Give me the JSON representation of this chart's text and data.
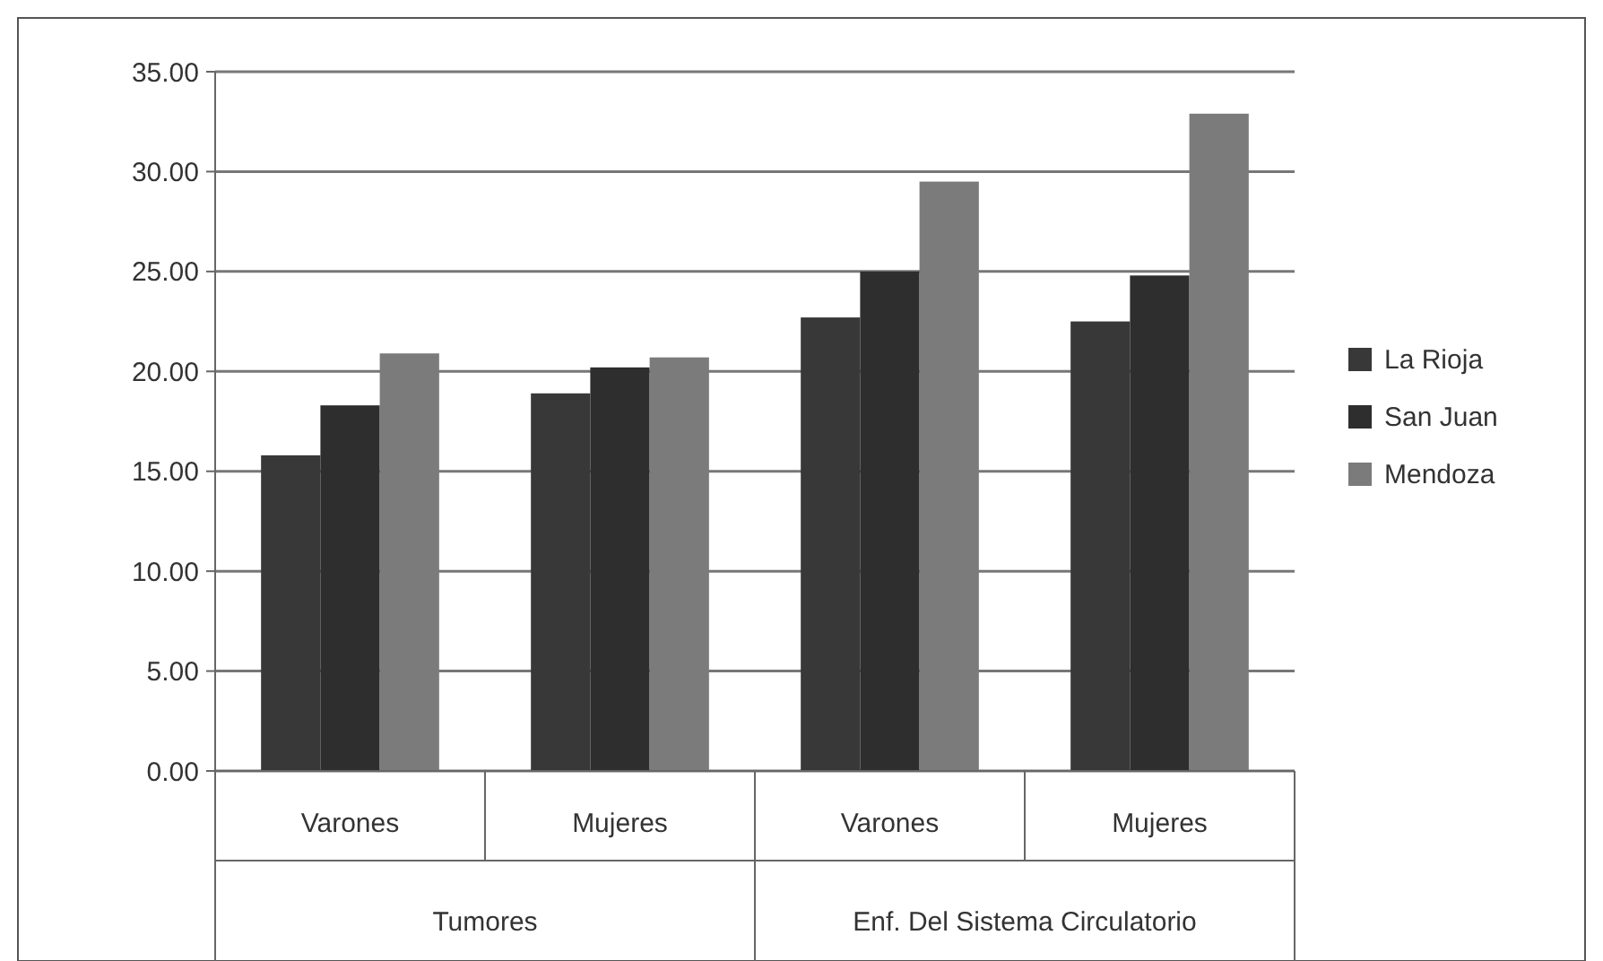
{
  "chart_data": {
    "type": "bar",
    "categories": [
      "Varones",
      "Mujeres",
      "Varones",
      "Mujeres"
    ],
    "annotations": [
      "Tumores",
      "Enf. Del Sistema Circulatorio"
    ],
    "series": [
      {
        "name": "La Rioja",
        "color": "#383838",
        "values": [
          15.8,
          18.9,
          22.7,
          22.5
        ]
      },
      {
        "name": "San Juan",
        "color": "#2e2e2e",
        "values": [
          18.3,
          20.2,
          25.0,
          24.8
        ]
      },
      {
        "name": "Mendoza",
        "color": "#7b7b7b",
        "values": [
          20.9,
          20.7,
          29.5,
          32.9
        ]
      }
    ],
    "ylim": [
      0,
      35
    ],
    "yticks": [
      {
        "value": 0,
        "label": "0.00"
      },
      {
        "value": 5,
        "label": "5.00"
      },
      {
        "value": 10,
        "label": "10.00"
      },
      {
        "value": 15,
        "label": "15.00"
      },
      {
        "value": 20,
        "label": "20.00"
      },
      {
        "value": 25,
        "label": "25.00"
      },
      {
        "value": 30,
        "label": "30.00"
      },
      {
        "value": 35,
        "label": "35.00"
      }
    ],
    "grid": "y",
    "legend": "right"
  }
}
